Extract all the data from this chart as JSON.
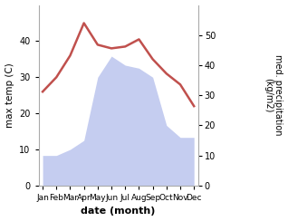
{
  "months": [
    "Jan",
    "Feb",
    "Mar",
    "Apr",
    "May",
    "Jun",
    "Jul",
    "Aug",
    "Sep",
    "Oct",
    "Nov",
    "Dec"
  ],
  "temperature": [
    26,
    30,
    36,
    45,
    39,
    38,
    38.5,
    40.5,
    35,
    31,
    28,
    22
  ],
  "precipitation": [
    10,
    10,
    12,
    15,
    36,
    43,
    40,
    39,
    36,
    20,
    16,
    16
  ],
  "temp_color": "#c0504d",
  "precip_fill_color": "#c5cdf0",
  "xlabel": "date (month)",
  "ylabel_left": "max temp (C)",
  "ylabel_right": "med. precipitation\n(kg/m2)",
  "ylim_left": [
    0,
    50
  ],
  "ylim_right": [
    0,
    60
  ],
  "yticks_left": [
    0,
    10,
    20,
    30,
    40
  ],
  "yticks_right": [
    0,
    10,
    20,
    30,
    40,
    50
  ],
  "bg_color": "#ffffff",
  "temp_linewidth": 1.8,
  "spine_color": "#aaaaaa"
}
